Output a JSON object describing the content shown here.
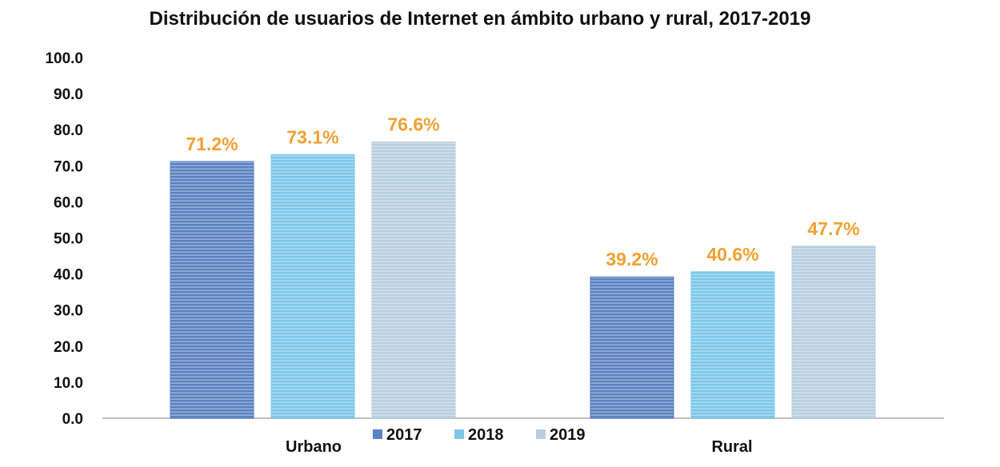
{
  "chart_data": {
    "type": "bar",
    "title": "Distribución de usuarios de Internet en ámbito urbano y rural, 2017-2019",
    "xlabel": "",
    "ylabel": "",
    "ylim": [
      0,
      100
    ],
    "yticks": [
      "0.0",
      "10.0",
      "20.0",
      "30.0",
      "40.0",
      "50.0",
      "60.0",
      "70.0",
      "80.0",
      "90.0",
      "100.0"
    ],
    "categories": [
      "Urbano",
      "Rural"
    ],
    "series": [
      {
        "name": "2017",
        "values": [
          71.2,
          39.2
        ],
        "labels": [
          "71.2%",
          "39.2%"
        ],
        "color": "#5b82c2"
      },
      {
        "name": "2018",
        "values": [
          73.1,
          40.6
        ],
        "labels": [
          "73.1%",
          "40.6%"
        ],
        "color": "#7cc7ea"
      },
      {
        "name": "2019",
        "values": [
          76.6,
          47.7
        ],
        "labels": [
          "76.6%",
          "47.7%"
        ],
        "color": "#b9cfe1"
      }
    ],
    "label_color": "#f0a030",
    "legend_position": "bottom-center",
    "grid": false
  }
}
